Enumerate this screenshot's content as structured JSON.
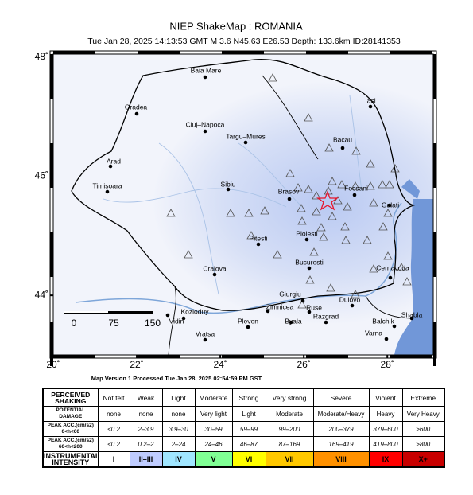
{
  "header": {
    "title": "NIEP ShakeMap : ROMANIA",
    "subtitle": "Tue Jan 28, 2025 14:13:53 GMT   M 3.6    N45.63 E26.53   Depth: 133.6km    ID:28141353"
  },
  "map": {
    "xlim": [
      20,
      29.1
    ],
    "ylim": [
      43.0,
      48.05
    ],
    "xticks": [
      {
        "value": 20,
        "label": "20˚"
      },
      {
        "value": 22,
        "label": "22˚"
      },
      {
        "value": 24,
        "label": "24˚"
      },
      {
        "value": 26,
        "label": "26˚"
      },
      {
        "value": 28,
        "label": "28˚"
      }
    ],
    "yticks": [
      {
        "value": 44,
        "label": "44˚"
      },
      {
        "value": 46,
        "label": "46˚"
      },
      {
        "value": 48,
        "label": "48˚"
      }
    ],
    "scale_labels": [
      "0",
      "75",
      "150"
    ],
    "cities": [
      "Baia Mare",
      "Oradea",
      "Cluj–Napoca",
      "Targu–Mures",
      "Iasi",
      "Bacau",
      "Arad",
      "Timisoara",
      "Sibiu",
      "Brasov",
      "Focsani",
      "Galati",
      "Ploiesti",
      "Pitesti",
      "Bucuresti",
      "Craiova",
      "Cernavoda",
      "Giurgiu",
      "Zimnicea",
      "Ruse",
      "Dulovo",
      "Kozloduy",
      "Vidin",
      "Byala",
      "Razgrad",
      "Pleven",
      "Balchik",
      "Shabla",
      "Varna",
      "Vratsa"
    ]
  },
  "processed": "Map Version 1 Processed Tue Jan 28, 2025 02:54:59 PM GST",
  "table": {
    "rows": [
      [
        "PERCEIVED\nSHAKING",
        "Not felt",
        "Weak",
        "Light",
        "Moderate",
        "Strong",
        "Very strong",
        "Severe",
        "Violent",
        "Extreme"
      ],
      [
        "POTENTIAL\nDAMAGE",
        "none",
        "none",
        "none",
        "Very light",
        "Light",
        "Moderate",
        "Moderate/Heavy",
        "Heavy",
        "Very Heavy"
      ],
      [
        "PEAK ACC.(cm/s2)\n0<h<60",
        "<0.2",
        "2–3.9",
        "3.9–30",
        "30–59",
        "59–99",
        "99–200",
        "200–379",
        "379–600",
        ">600"
      ],
      [
        "PEAK ACC.(cm/s2)\n60<h<200",
        "<0.2",
        "0.2–2",
        "2–24",
        "24–46",
        "46–87",
        "87–169",
        "169–419",
        "419–800",
        ">800"
      ],
      [
        "INSTRUMENTAL\nINTENSITY",
        "I",
        "II–III",
        "IV",
        "V",
        "VI",
        "VII",
        "VIII",
        "IX",
        "X+"
      ]
    ]
  }
}
